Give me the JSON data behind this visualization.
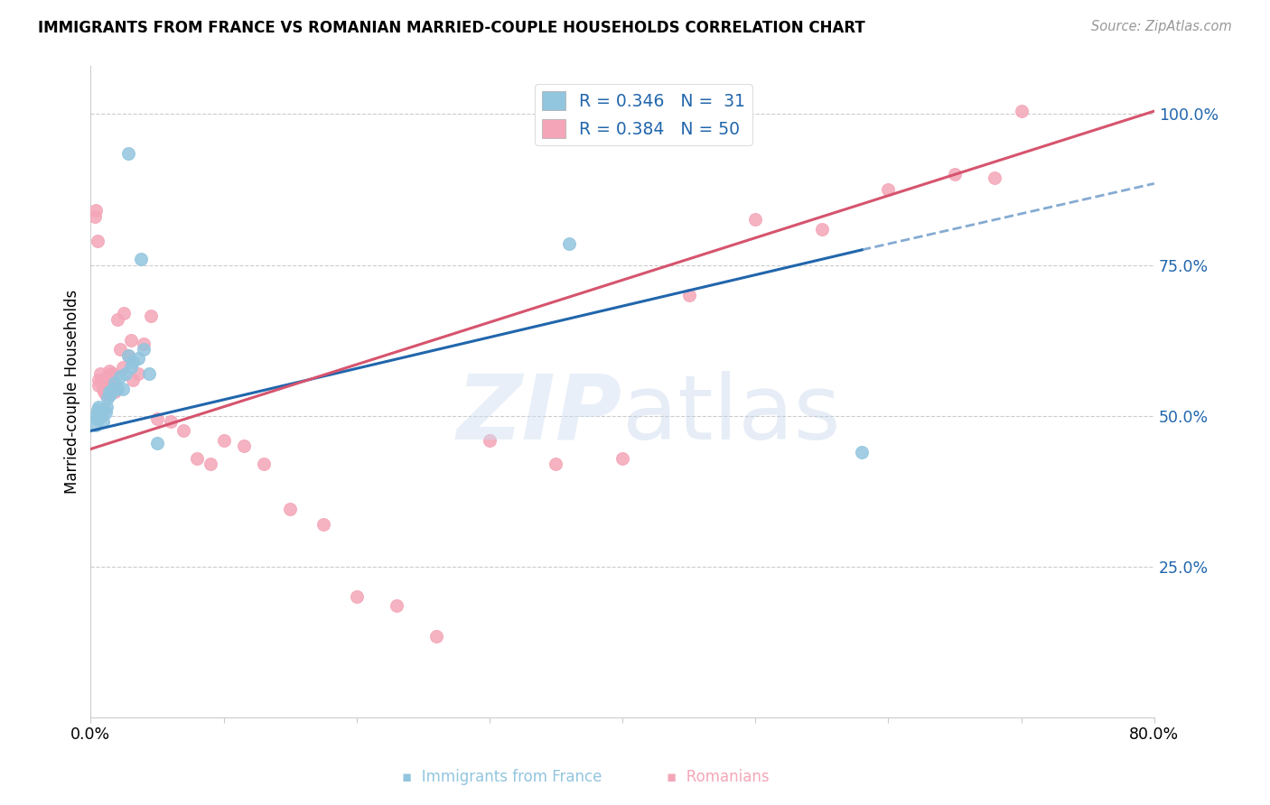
{
  "title": "IMMIGRANTS FROM FRANCE VS ROMANIAN MARRIED-COUPLE HOUSEHOLDS CORRELATION CHART",
  "source": "Source: ZipAtlas.com",
  "ylabel": "Married-couple Households",
  "ytick_labels": [
    "25.0%",
    "50.0%",
    "75.0%",
    "100.0%"
  ],
  "ytick_values": [
    0.25,
    0.5,
    0.75,
    1.0
  ],
  "xlim": [
    0.0,
    0.8
  ],
  "ylim": [
    0.0,
    1.08
  ],
  "legend_r_blue": "R = 0.346",
  "legend_n_blue": "N =  31",
  "legend_r_pink": "R = 0.384",
  "legend_n_pink": "N = 50",
  "blue_color": "#92c5de",
  "pink_color": "#f4a6b8",
  "line_blue": "#2166ac",
  "line_pink": "#d6546e",
  "blue_line_x0": 0.0,
  "blue_line_y0": 0.475,
  "blue_line_x1": 0.58,
  "blue_line_y1": 0.775,
  "pink_line_x0": 0.0,
  "pink_line_y0": 0.445,
  "pink_line_x1": 0.8,
  "pink_line_y1": 1.005,
  "dash_line_x0": 0.58,
  "dash_line_y0": 0.775,
  "dash_line_x1": 0.8,
  "dash_line_y1": 0.885,
  "blue_x": [
    0.028,
    0.038,
    0.004,
    0.004,
    0.005,
    0.005,
    0.006,
    0.007,
    0.008,
    0.009,
    0.01,
    0.011,
    0.012,
    0.013,
    0.014,
    0.015,
    0.017,
    0.018,
    0.02,
    0.022,
    0.024,
    0.026,
    0.028,
    0.03,
    0.032,
    0.036,
    0.04,
    0.044,
    0.05,
    0.58,
    0.36
  ],
  "blue_y": [
    0.935,
    0.76,
    0.485,
    0.5,
    0.495,
    0.51,
    0.515,
    0.505,
    0.5,
    0.49,
    0.51,
    0.505,
    0.515,
    0.53,
    0.54,
    0.535,
    0.545,
    0.555,
    0.545,
    0.565,
    0.545,
    0.57,
    0.6,
    0.58,
    0.59,
    0.595,
    0.61,
    0.57,
    0.455,
    0.44,
    0.785
  ],
  "pink_x": [
    0.003,
    0.004,
    0.005,
    0.006,
    0.006,
    0.007,
    0.008,
    0.009,
    0.01,
    0.011,
    0.012,
    0.013,
    0.014,
    0.015,
    0.016,
    0.017,
    0.018,
    0.02,
    0.022,
    0.024,
    0.025,
    0.028,
    0.03,
    0.032,
    0.036,
    0.04,
    0.045,
    0.05,
    0.06,
    0.07,
    0.08,
    0.09,
    0.1,
    0.115,
    0.13,
    0.15,
    0.175,
    0.2,
    0.23,
    0.26,
    0.3,
    0.35,
    0.4,
    0.45,
    0.5,
    0.55,
    0.6,
    0.65,
    0.68,
    0.7
  ],
  "pink_y": [
    0.83,
    0.84,
    0.79,
    0.55,
    0.56,
    0.57,
    0.56,
    0.545,
    0.54,
    0.535,
    0.56,
    0.565,
    0.575,
    0.57,
    0.555,
    0.57,
    0.54,
    0.66,
    0.61,
    0.58,
    0.67,
    0.6,
    0.625,
    0.56,
    0.57,
    0.62,
    0.665,
    0.495,
    0.49,
    0.475,
    0.43,
    0.42,
    0.46,
    0.45,
    0.42,
    0.345,
    0.32,
    0.2,
    0.185,
    0.135,
    0.46,
    0.42,
    0.43,
    0.7,
    0.825,
    0.81,
    0.875,
    0.9,
    0.895,
    1.005
  ]
}
